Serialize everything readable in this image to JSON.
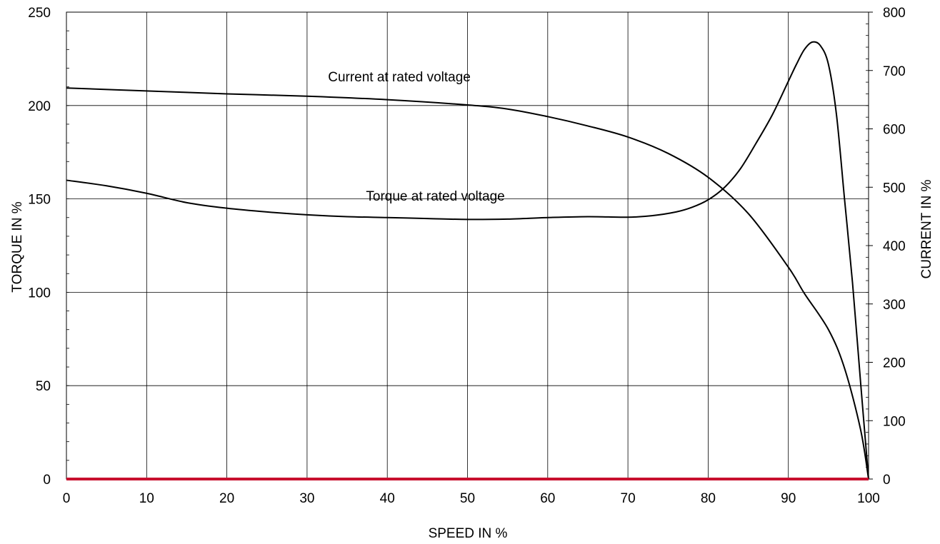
{
  "chart_data": {
    "type": "line",
    "title": "",
    "xlabel": "SPEED IN %",
    "ylabel_left": "TORQUE IN %",
    "ylabel_right": "CURRENT IN %",
    "xlim": [
      0,
      100
    ],
    "ylim_left": [
      0,
      250
    ],
    "ylim_right": [
      0,
      800
    ],
    "x_ticks": [
      "0",
      "10",
      "20",
      "30",
      "40",
      "50",
      "60",
      "70",
      "80",
      "90",
      "100"
    ],
    "y_left_ticks": [
      "0",
      "50",
      "100",
      "150",
      "200",
      "250"
    ],
    "y_right_ticks": [
      "0",
      "100",
      "200",
      "300",
      "400",
      "500",
      "600",
      "700",
      "800"
    ],
    "grid": true,
    "series": [
      {
        "name": "Current at rated voltage",
        "axis": "right",
        "color": "#000000",
        "x": [
          0,
          10,
          20,
          30,
          40,
          50,
          55,
          60,
          65,
          70,
          75,
          80,
          85,
          90,
          92,
          95,
          97,
          99,
          100
        ],
        "y": [
          670,
          665,
          660,
          656,
          650,
          641,
          634,
          621,
          605,
          586,
          558,
          517,
          455,
          363,
          318,
          256,
          190,
          85,
          0
        ]
      },
      {
        "name": "Torque at rated voltage",
        "axis": "left",
        "color": "#000000",
        "x": [
          0,
          5,
          10,
          15,
          20,
          25,
          30,
          35,
          40,
          45,
          50,
          55,
          60,
          65,
          70,
          73,
          76,
          78,
          80,
          82,
          84,
          86,
          88,
          90,
          91,
          92,
          93,
          94,
          95,
          96,
          97,
          98,
          99,
          100
        ],
        "y": [
          160,
          157,
          153,
          148,
          145,
          143,
          141.5,
          140.5,
          140,
          139.5,
          139,
          139.2,
          140,
          140.5,
          140.2,
          141,
          143,
          145.5,
          149.5,
          156,
          166,
          180,
          195,
          213,
          222,
          230,
          234,
          232,
          222,
          195,
          150,
          105,
          52,
          0
        ]
      }
    ],
    "baseline": {
      "y": 0,
      "color": "#c8102e"
    },
    "annotations": [
      {
        "text": "Current at rated voltage",
        "x": 41.5,
        "y_left": 213
      },
      {
        "text": "Torque at rated voltage",
        "x": 46,
        "y_left": 149
      }
    ]
  }
}
